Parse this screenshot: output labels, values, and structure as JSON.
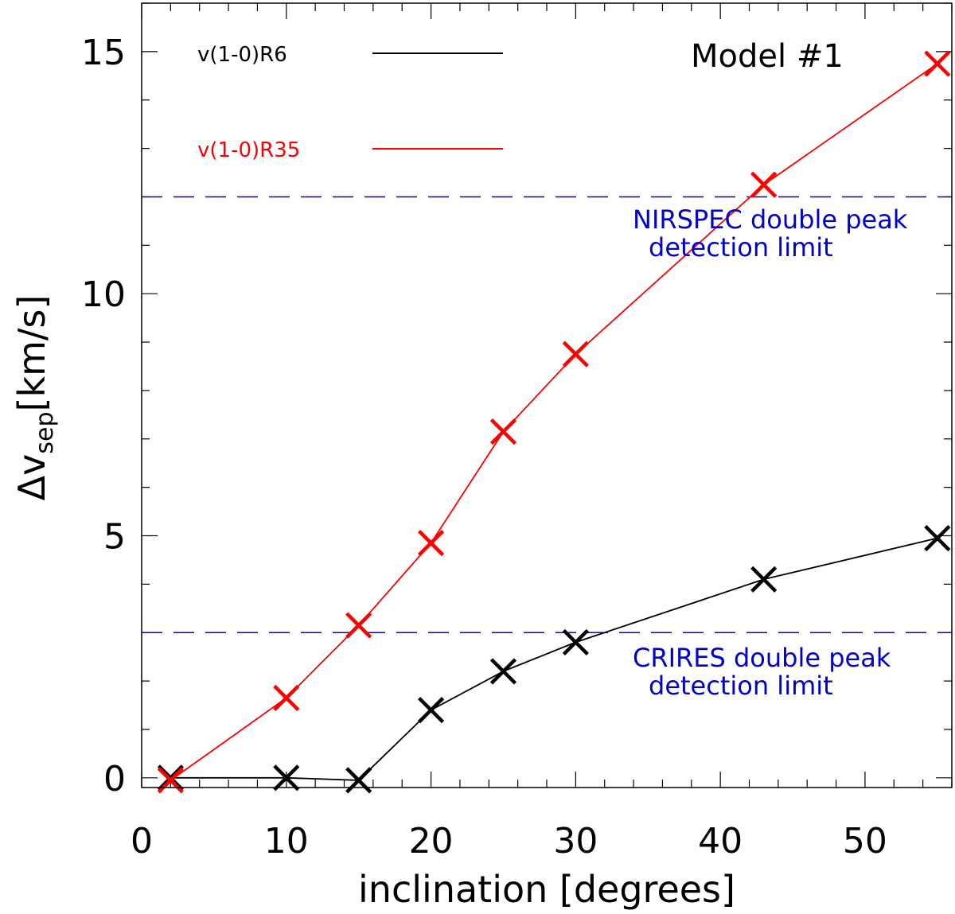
{
  "chart_data": {
    "type": "line",
    "xlabel": "inclination [degrees]",
    "ylabel": {
      "delta": "Δ",
      "v": "v",
      "sub": "sep",
      "unit": "[km/s]"
    },
    "xlim": [
      0,
      56
    ],
    "ylim": [
      -0.2,
      16
    ],
    "x_ticks": [
      0,
      10,
      20,
      30,
      40,
      50
    ],
    "x_tick_labels": [
      "0",
      "10",
      "20",
      "30",
      "40",
      "50"
    ],
    "y_ticks": [
      0,
      5,
      10,
      15
    ],
    "y_tick_labels": [
      "0",
      "5",
      "10",
      "15"
    ],
    "model_label": "Model  #1",
    "series": [
      {
        "name": "v(1-0)R6",
        "color": "#000000",
        "x": [
          2,
          10,
          15,
          20,
          25,
          30,
          43,
          55
        ],
        "values": [
          0.0,
          0.0,
          -0.05,
          1.4,
          2.2,
          2.8,
          4.1,
          4.95
        ]
      },
      {
        "name": "v(1-0)R35",
        "color": "#ff0000",
        "x": [
          2,
          10,
          15,
          20,
          25,
          30,
          43,
          55
        ],
        "values": [
          -0.05,
          1.65,
          3.15,
          4.85,
          7.15,
          8.75,
          12.25,
          14.75
        ]
      }
    ],
    "reference_lines": [
      {
        "y": 12.0,
        "color": "#0000cc",
        "label_line1": "NIRSPEC double peak",
        "label_line2": "detection limit"
      },
      {
        "y": 3.0,
        "color": "#0000cc",
        "label_line1": "CRIRES double peak",
        "label_line2": "detection limit"
      }
    ]
  }
}
